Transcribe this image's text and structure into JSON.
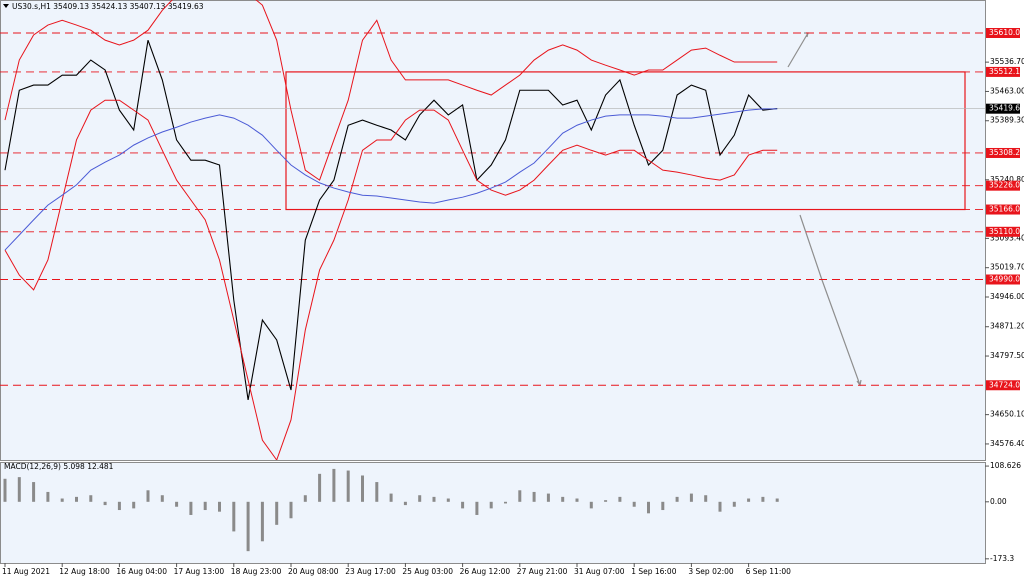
{
  "chart_data": [
    {
      "type": "line",
      "title": "US30.s,H1  35409.13 35424.13 35407.13 35419.63",
      "categories": [
        "11 Aug 2021",
        null,
        null,
        null,
        "12 Aug 18:00",
        null,
        null,
        null,
        "16 Aug 04:00",
        null,
        null,
        null,
        "17 Aug 13:00",
        null,
        null,
        null,
        "18 Aug 23:00",
        null,
        null,
        null,
        "20 Aug 08:00",
        null,
        null,
        null,
        "23 Aug 17:00",
        null,
        null,
        null,
        "25 Aug 03:00",
        null,
        null,
        null,
        "26 Aug 12:00",
        null,
        null,
        null,
        "27 Aug 21:00",
        null,
        null,
        null,
        "31 Aug 07:00",
        null,
        null,
        null,
        "1 Sep 16:00",
        null,
        null,
        null,
        "3 Sep 02:00",
        null,
        null,
        null,
        "6 Sep 11:00",
        null,
        null
      ],
      "series": [
        {
          "color": "#000000",
          "values": [
            35265,
            35466,
            35479,
            35479,
            35504,
            35504,
            35542,
            35517,
            35416,
            35366,
            35592,
            35492,
            35341,
            35290,
            35290,
            35278,
            34938,
            34687,
            34888,
            34838,
            34712,
            35089,
            35190,
            35240,
            35378,
            35391,
            35378,
            35366,
            35341,
            35404,
            35441,
            35404,
            35429,
            35240,
            35278,
            35341,
            35466,
            35466,
            35466,
            35429,
            35441,
            35366,
            35454,
            35492,
            35378,
            35278,
            35315,
            35454,
            35479,
            35466,
            35303,
            35353,
            35454,
            35416,
            35420
          ]
        },
        {
          "color": "#e8141b",
          "values": [
            35391,
            35542,
            35605,
            35630,
            35642,
            35630,
            35617,
            35592,
            35580,
            35592,
            35617,
            35667,
            35705,
            35720,
            35720,
            35715,
            35720,
            35710,
            35680,
            35592,
            35416,
            35265,
            35240,
            35341,
            35441,
            35592,
            35642,
            35542,
            35492,
            35492,
            35492,
            35492,
            35479,
            35466,
            35454,
            35479,
            35504,
            35542,
            35567,
            35580,
            35567,
            35542,
            35529,
            35517,
            35504,
            35517,
            35517,
            35542,
            35567,
            35572,
            35554,
            35537,
            35537,
            35537,
            35537
          ]
        },
        {
          "color": "#e8141b",
          "values": [
            35064,
            35001,
            34964,
            35039,
            35190,
            35341,
            35416,
            35441,
            35441,
            35416,
            35391,
            35315,
            35240,
            35190,
            35140,
            35039,
            34888,
            34737,
            34586,
            34536,
            34637,
            34863,
            35014,
            35089,
            35190,
            35315,
            35341,
            35341,
            35391,
            35416,
            35416,
            35391,
            35315,
            35240,
            35215,
            35202,
            35215,
            35240,
            35278,
            35315,
            35328,
            35315,
            35303,
            35315,
            35315,
            35290,
            35265,
            35260,
            35253,
            35245,
            35240,
            35253,
            35303,
            35315,
            35315
          ]
        },
        {
          "color": "#4b5bd6",
          "values": [
            35064,
            35102,
            35140,
            35177,
            35202,
            35228,
            35265,
            35285,
            35303,
            35328,
            35346,
            35361,
            35373,
            35386,
            35396,
            35404,
            35396,
            35378,
            35353,
            35315,
            35278,
            35253,
            35233,
            35220,
            35210,
            35202,
            35200,
            35195,
            35190,
            35185,
            35182,
            35190,
            35197,
            35207,
            35220,
            35235,
            35260,
            35283,
            35320,
            35358,
            35378,
            35391,
            35401,
            35404,
            35404,
            35404,
            35401,
            35396,
            35396,
            35401,
            35406,
            35411,
            35416,
            35419,
            35419
          ]
        }
      ],
      "ylim": [
        34536,
        35693
      ],
      "yticks": [
        {
          "value": 35536.7,
          "label": "35536.70"
        },
        {
          "value": 35463,
          "label": "35463.00"
        },
        {
          "value": 35389.3,
          "label": "35389.30"
        },
        {
          "value": 35240.8,
          "label": "35240.80"
        },
        {
          "value": 35093.4,
          "label": "35093.40"
        },
        {
          "value": 35019.7,
          "label": "35019.70"
        },
        {
          "value": 34946,
          "label": "34946.00"
        },
        {
          "value": 34871.2,
          "label": "34871.20"
        },
        {
          "value": 34797.5,
          "label": "34797.50"
        },
        {
          "value": 34650.1,
          "label": "34650.10"
        },
        {
          "value": 34576.4,
          "label": "34576.40"
        }
      ],
      "levels": [
        {
          "value": 35610,
          "label": "35610.00"
        },
        {
          "value": 35512.12,
          "label": "35512.12"
        },
        {
          "value": 35308.23,
          "label": "35308.23"
        },
        {
          "value": 35226,
          "label": "35226.00"
        },
        {
          "value": 35166,
          "label": "35166.00"
        },
        {
          "value": 35110,
          "label": "35110.00"
        },
        {
          "value": 34990,
          "label": "34990.00"
        },
        {
          "value": 34724,
          "label": "34724.00"
        }
      ],
      "level_color": "#e8141b",
      "last_price": {
        "value": 35419.63,
        "label": "35419.63"
      }
    },
    {
      "type": "bar",
      "title": "MACD(12,26,9) 5.098 12.481",
      "color": "#8a8a8a",
      "values": [
        70,
        75,
        60,
        30,
        10,
        15,
        20,
        -10,
        -25,
        -20,
        35,
        20,
        -15,
        -40,
        -25,
        -30,
        -90,
        -150,
        -120,
        -70,
        -50,
        20,
        85,
        100,
        95,
        80,
        60,
        25,
        -10,
        20,
        15,
        10,
        -20,
        -40,
        -20,
        -5,
        35,
        30,
        25,
        15,
        10,
        -20,
        5,
        15,
        -15,
        -35,
        -25,
        15,
        25,
        20,
        -30,
        -15,
        10,
        15,
        10
      ],
      "ylim": [
        -186,
        121
      ],
      "yticks": [
        {
          "value": 108.626,
          "label": "108.626"
        },
        {
          "value": 0,
          "label": "0.00"
        },
        {
          "value": -173.3,
          "label": "-173.3"
        }
      ]
    }
  ]
}
